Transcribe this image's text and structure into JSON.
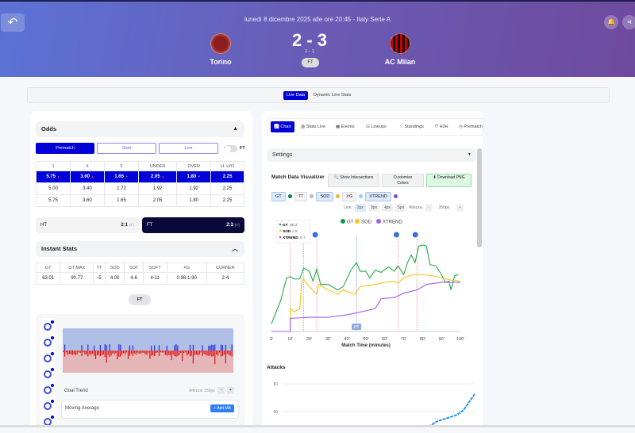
{
  "header": {
    "date": "lunedì 8 dicembre 2025 alle ore 20:45 - Italy Serie A",
    "home": "Torino",
    "away": "AC Milan",
    "score": "2 - 3",
    "ht_score": "2 - 1",
    "status": "FT",
    "back_icon": "undo-icon",
    "bell_icon": "bell-icon",
    "share_icon": "share-icon"
  },
  "view_tabs": [
    {
      "label": "Live Data",
      "active": true
    },
    {
      "label": "Dynamic Line Stats",
      "active": false
    }
  ],
  "odds": {
    "title": "Odds",
    "modes": [
      "Prematch",
      "Start",
      "Live"
    ],
    "toggle_label": "FT",
    "columns": [
      "1",
      "X",
      "2",
      "UNDER",
      "OVER",
      "H. U/O"
    ],
    "rows": [
      [
        "5.75",
        "3.60",
        "1.65",
        "2.05",
        "1.80",
        "2.25"
      ],
      [
        "5.00",
        "3.40",
        "1.72",
        "1.92",
        "1.92",
        "2.25"
      ],
      [
        "5.75",
        "3.60",
        "1.65",
        "2.05",
        "1.80",
        "2.25"
      ]
    ],
    "trends": [
      "up",
      "up",
      "down",
      "up",
      "down",
      ""
    ]
  },
  "periods": {
    "ht_label": "HT",
    "ht_score": "2:1",
    "ht_min": "(4')",
    "ft_label": "FT",
    "ft_score": "2:3",
    "ft_min": "(5')"
  },
  "instant": {
    "title": "Instant Stats",
    "columns": [
      "GT",
      "GT MAX",
      "TT",
      "SOD",
      "SOT",
      "SOFT",
      "XG",
      "CORNER"
    ],
    "values": [
      "63.01",
      "90.77",
      "-5",
      "4.00",
      "4-6",
      "4-11",
      "0.98-1.90",
      "2-4"
    ],
    "ft_button": "FT"
  },
  "goal_trend": {
    "label": "Goal Trend",
    "height_label": "Altezza: 150px",
    "minus": "-",
    "plus": "+",
    "ma_label": "Moving Average",
    "add_ma": "+ Add MA"
  },
  "right_tabs": [
    "Chart",
    "Stats Live",
    "Events",
    "Lineups",
    "Standings",
    "H2H",
    "Prematch"
  ],
  "settings": {
    "title": "Settings",
    "visualizer_title": "Match Data Visualizer",
    "buttons": [
      "Show Intersections",
      "Customize Colors",
      "Download PNG"
    ],
    "series_toggles": [
      {
        "label": "GT",
        "color": "#0a7a3e",
        "active": true
      },
      {
        "label": "TT",
        "color": "#bbbbbb",
        "active": false
      },
      {
        "label": "SOD",
        "color": "#f5b52a",
        "active": true
      },
      {
        "label": "XG",
        "color": "#7fd3f7",
        "active": false
      },
      {
        "label": "XTREND",
        "color": "#7a4fd6",
        "active": true
      }
    ],
    "line_label": "Line:",
    "line_options": [
      "2px",
      "3px",
      "4px",
      "5px"
    ],
    "line_selected": "2px",
    "height_label": "Altezza:",
    "height_value": "350px",
    "minus": "-",
    "plus": "+"
  },
  "chart_data": [
    {
      "type": "line",
      "xlabel": "Match Time (minutes)",
      "xlim": [
        0,
        100
      ],
      "xticks": [
        "0'",
        "10'",
        "20'",
        "30'",
        "40'",
        "50'",
        "60'",
        "70'",
        "80'",
        "90'",
        "100'"
      ],
      "legend": [
        "GT",
        "SOD",
        "XTREND"
      ],
      "tooltip": [
        {
          "name": "GT",
          "value": "58.3"
        },
        {
          "name": "SOD",
          "value": "1.8"
        },
        {
          "name": "XTREND",
          "value": "0.7"
        }
      ],
      "halftime_label": "HT",
      "halftime_minute": 45,
      "event_minutes": [
        10,
        17,
        24,
        67,
        77
      ],
      "goal_minutes": [
        24,
        67,
        77
      ],
      "series": [
        {
          "name": "GT",
          "color": "#22aa44",
          "points": [
            [
              0,
              7
            ],
            [
              5,
              29
            ],
            [
              8,
              49
            ],
            [
              10,
              50
            ],
            [
              12,
              48
            ],
            [
              15,
              48
            ],
            [
              17,
              58
            ],
            [
              20,
              55
            ],
            [
              22,
              46
            ],
            [
              24,
              57
            ],
            [
              26,
              43
            ],
            [
              30,
              43
            ],
            [
              35,
              38
            ],
            [
              38,
              41
            ],
            [
              42,
              56
            ],
            [
              45,
              63
            ],
            [
              47,
              55
            ],
            [
              50,
              55
            ],
            [
              52,
              49
            ],
            [
              55,
              56
            ],
            [
              58,
              54
            ],
            [
              62,
              59
            ],
            [
              65,
              55
            ],
            [
              67,
              60
            ],
            [
              70,
              52
            ],
            [
              72,
              63
            ],
            [
              74,
              70
            ],
            [
              76,
              63
            ],
            [
              78,
              78
            ],
            [
              80,
              79
            ],
            [
              82,
              78
            ],
            [
              84,
              61
            ],
            [
              87,
              60
            ],
            [
              90,
              52
            ],
            [
              92,
              45
            ],
            [
              94,
              46
            ],
            [
              95,
              38
            ],
            [
              97,
              51
            ],
            [
              99,
              52
            ]
          ]
        },
        {
          "name": "SOD",
          "color": "#f5c518",
          "points": [
            [
              0,
              0
            ],
            [
              10,
              0
            ],
            [
              10,
              21
            ],
            [
              12,
              18
            ],
            [
              15,
              21
            ],
            [
              16,
              46
            ],
            [
              17,
              48
            ],
            [
              20,
              41
            ],
            [
              24,
              34
            ],
            [
              25,
              43
            ],
            [
              30,
              38
            ],
            [
              35,
              34
            ],
            [
              38,
              38
            ],
            [
              44,
              34
            ],
            [
              47,
              41
            ],
            [
              55,
              43
            ],
            [
              60,
              45
            ],
            [
              65,
              46
            ],
            [
              67,
              44
            ],
            [
              70,
              49
            ],
            [
              75,
              52
            ],
            [
              80,
              52
            ],
            [
              85,
              51
            ],
            [
              90,
              49
            ],
            [
              95,
              47
            ],
            [
              100,
              46
            ]
          ]
        },
        {
          "name": "XTREND",
          "color": "#a45cf0",
          "points": [
            [
              0,
              0
            ],
            [
              10,
              0
            ],
            [
              10,
              12
            ],
            [
              20,
              13
            ],
            [
              30,
              13
            ],
            [
              39,
              15
            ],
            [
              45,
              17
            ],
            [
              55,
              21
            ],
            [
              58,
              30
            ],
            [
              65,
              31
            ],
            [
              70,
              35
            ],
            [
              77,
              38
            ],
            [
              82,
              43
            ],
            [
              90,
              45
            ],
            [
              100,
              45
            ]
          ]
        }
      ]
    },
    {
      "type": "line",
      "title": "Attacks",
      "yticks": [
        "80",
        "60"
      ],
      "series": [
        {
          "color": "#2196f3",
          "points": [
            [
              0,
              44
            ],
            [
              20,
              47
            ],
            [
              40,
              53
            ],
            [
              60,
              56
            ],
            [
              80,
              60
            ],
            [
              100,
              72
            ]
          ]
        }
      ]
    }
  ]
}
